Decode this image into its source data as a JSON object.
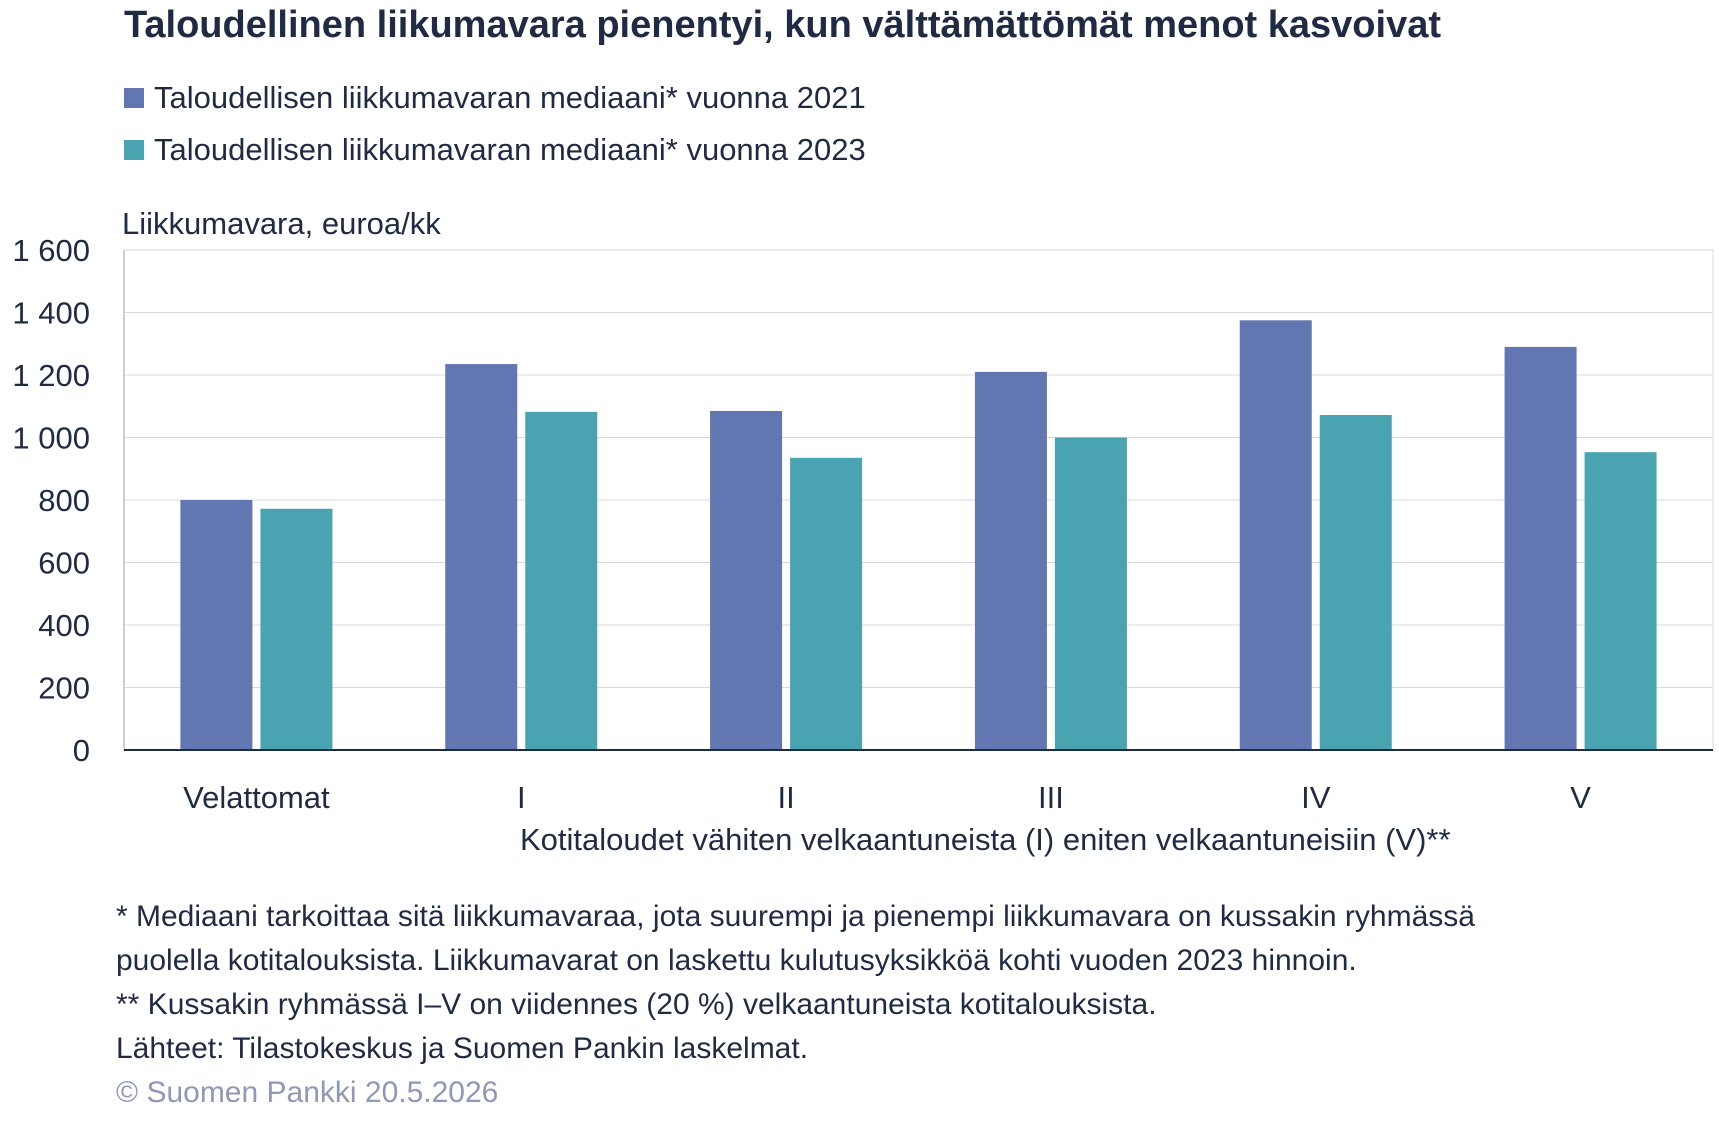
{
  "title": "Taloudellinen liikumavara pienentyi, kun välttämättömät menot kasvoivat",
  "legend": [
    {
      "label": "Taloudellisen liikkumavaran mediaani* vuonna 2021",
      "color": "#6276b2"
    },
    {
      "label": "Taloudellisen liikkumavaran mediaani* vuonna 2023",
      "color": "#4aa3b0"
    }
  ],
  "notes": [
    "* Mediaani tarkoittaa sitä liikkumavaraa, jota suurempi ja pienempi liikkumavara on kussakin ryhmässä",
    "puolella kotitalouksista. Liikkumavarat on laskettu kulutusyksikköä kohti vuoden 2023 hinnoin.",
    "** Kussakin ryhmässä I–V on viidennes (20 %) velkaantuneista kotitalouksista.",
    "Lähteet: Tilastokeskus ja Suomen Pankin laskelmat."
  ],
  "copyright": "© Suomen Pankki 20.5.2026",
  "chart_data": {
    "type": "bar",
    "title": "Taloudellinen liikumavara pienentyi, kun välttämättömät menot kasvoivat",
    "ylabel": "Liikkumavara, euroa/kk",
    "xlabel": "Kotitaloudet vähiten velkaantuneista (I) eniten velkaantuneisiin (V)**",
    "categories": [
      "Velattomat",
      "I",
      "II",
      "III",
      "IV",
      "V"
    ],
    "series": [
      {
        "name": "Taloudellisen liikkumavaran mediaani* vuonna 2021",
        "color": "#6276b2",
        "values": [
          800,
          1235,
          1085,
          1210,
          1375,
          1290
        ]
      },
      {
        "name": "Taloudellisen liikkumavaran mediaani* vuonna 2023",
        "color": "#4aa3b0",
        "values": [
          772,
          1082,
          935,
          1000,
          1072,
          953
        ]
      }
    ],
    "ylim": [
      0,
      1600
    ],
    "yticks": [
      0,
      200,
      400,
      600,
      800,
      1000,
      1200,
      1400,
      1600
    ],
    "ytick_labels": [
      "0",
      "200",
      "400",
      "600",
      "800",
      "1 000",
      "1 200",
      "1 400",
      "1 600"
    ],
    "grid": true,
    "legend_position": "top-left"
  }
}
